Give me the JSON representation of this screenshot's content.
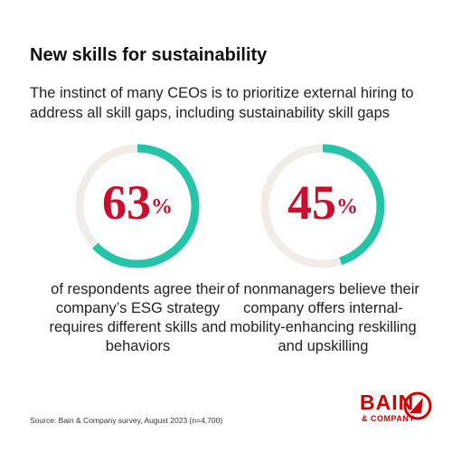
{
  "title": "New skills for sustainability",
  "subtitle": "The instinct of many CEOs is to prioritize external hiring to address all skill gaps, including sustainability skill gaps",
  "chart_data": [
    {
      "type": "donut",
      "values": [
        63
      ],
      "value_labels": [
        "63%"
      ],
      "ylim": [
        0,
        100
      ],
      "color": "#25c3a8",
      "track_color": "#f0ece8",
      "caption": "of respondents agree their company’s ESG strategy requires different skills and behaviors"
    },
    {
      "type": "donut",
      "values": [
        45
      ],
      "value_labels": [
        "45%"
      ],
      "ylim": [
        0,
        100
      ],
      "color": "#25c3a8",
      "track_color": "#f0ece8",
      "caption": "of nonmanagers believe their company offers internal-mobility-enhancing reskilling and upskilling"
    }
  ],
  "source": "Source: Bain & Company survey, August 2023 (n=4,700)",
  "logo": {
    "name": "BAIN",
    "sub": "& COMPANY"
  }
}
